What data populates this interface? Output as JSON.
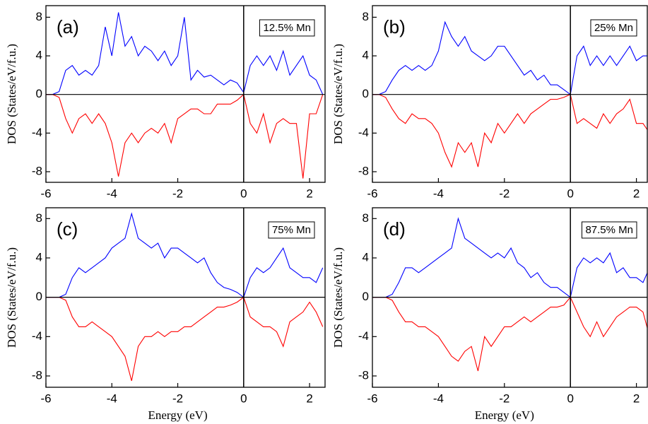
{
  "chart_data": [
    {
      "type": "line",
      "panel_label": "(a)",
      "annotation": "12.5% Mn",
      "ylabel": "DOS (States/eV/f.u.)",
      "xlim": [
        -6,
        2.47
      ],
      "ylim": [
        -9.1,
        9.2
      ],
      "xticks": [
        -6,
        -4,
        -2,
        0,
        2
      ],
      "yticks": [
        -8,
        -4,
        0,
        4,
        8
      ],
      "x": [
        -6,
        -5.8,
        -5.6,
        -5.4,
        -5.2,
        -5,
        -4.8,
        -4.6,
        -4.4,
        -4.2,
        -4,
        -3.8,
        -3.6,
        -3.4,
        -3.2,
        -3,
        -2.8,
        -2.6,
        -2.4,
        -2.2,
        -2,
        -1.8,
        -1.6,
        -1.4,
        -1.2,
        -1,
        -0.8,
        -0.6,
        -0.4,
        -0.2,
        0,
        0.2,
        0.4,
        0.6,
        0.8,
        1,
        1.2,
        1.4,
        1.6,
        1.8,
        2,
        2.2,
        2.4
      ],
      "series": [
        {
          "color": "#0000ff",
          "values": [
            0,
            0,
            0.3,
            2.5,
            3,
            2,
            2.5,
            2,
            3,
            7,
            4,
            8.5,
            5,
            6,
            4,
            5,
            4.5,
            3.5,
            4.5,
            3,
            4,
            8,
            1.5,
            2.5,
            1.8,
            2,
            1.5,
            1,
            1.5,
            1.2,
            0.2,
            3,
            4,
            3,
            4,
            2.5,
            4.5,
            2,
            3,
            4,
            2,
            1.5,
            0
          ]
        },
        {
          "color": "#ff0000",
          "values": [
            0,
            0,
            -0.3,
            -2.5,
            -4,
            -2.5,
            -2,
            -3,
            -2,
            -3,
            -5,
            -8.5,
            -5,
            -4,
            -5,
            -4,
            -3.5,
            -4,
            -3,
            -5,
            -2.5,
            -2,
            -1.5,
            -1.5,
            -2,
            -2,
            -1,
            -1,
            -1,
            -0.6,
            0,
            -3,
            -4,
            -2,
            -5,
            -3,
            -2.5,
            -3,
            -3,
            -8.7,
            -2,
            -2,
            0
          ]
        }
      ]
    },
    {
      "type": "line",
      "panel_label": "(b)",
      "annotation": "25% Mn",
      "ylabel": "DOS (States/eV/f.u.)",
      "xlim": [
        -6,
        2.33
      ],
      "ylim": [
        -9.1,
        9.2
      ],
      "xticks": [
        -6,
        -4,
        -2,
        0,
        2
      ],
      "yticks": [
        -8,
        -4,
        0,
        4,
        8
      ],
      "x": [
        -6,
        -5.8,
        -5.6,
        -5.4,
        -5.2,
        -5,
        -4.8,
        -4.6,
        -4.4,
        -4.2,
        -4,
        -3.8,
        -3.6,
        -3.4,
        -3.2,
        -3,
        -2.8,
        -2.6,
        -2.4,
        -2.2,
        -2,
        -1.8,
        -1.6,
        -1.4,
        -1.2,
        -1,
        -0.8,
        -0.6,
        -0.4,
        -0.2,
        0,
        0.2,
        0.4,
        0.6,
        0.8,
        1,
        1.2,
        1.4,
        1.6,
        1.8,
        2,
        2.2,
        2.4
      ],
      "series": [
        {
          "color": "#0000ff",
          "values": [
            0,
            0,
            0.3,
            1.5,
            2.5,
            3,
            2.5,
            3,
            2.5,
            3,
            4.5,
            7.5,
            6,
            5,
            6,
            4.5,
            4,
            3.5,
            4,
            5,
            5,
            4,
            3,
            2,
            2.5,
            1.5,
            2,
            1,
            1,
            0.5,
            0,
            4,
            5,
            3,
            4,
            3,
            4,
            3,
            4,
            5,
            3.5,
            4,
            4
          ]
        },
        {
          "color": "#ff0000",
          "values": [
            0,
            0,
            -0.3,
            -1.5,
            -2.5,
            -3,
            -2,
            -2.5,
            -2.5,
            -3,
            -4,
            -6,
            -7.5,
            -5,
            -6,
            -5,
            -7.5,
            -4,
            -5,
            -3,
            -4,
            -3,
            -2,
            -3,
            -2,
            -1.5,
            -1,
            -0.5,
            -0.5,
            -0.3,
            0,
            -3,
            -2.5,
            -3,
            -3.5,
            -2,
            -3,
            -2,
            -1.5,
            -0.5,
            -3,
            -3,
            -4
          ]
        }
      ]
    },
    {
      "type": "line",
      "panel_label": "(c)",
      "annotation": "75% Mn",
      "ylabel": "DOS (States/eV/f.u.)",
      "xlabel": "Energy (eV)",
      "xlim": [
        -6,
        2.47
      ],
      "ylim": [
        -9.15,
        9.1
      ],
      "xticks": [
        -6,
        -4,
        -2,
        0,
        2
      ],
      "yticks": [
        -8,
        -4,
        0,
        4,
        8
      ],
      "x": [
        -6,
        -5.8,
        -5.6,
        -5.4,
        -5.2,
        -5,
        -4.8,
        -4.6,
        -4.4,
        -4.2,
        -4,
        -3.8,
        -3.6,
        -3.4,
        -3.2,
        -3,
        -2.8,
        -2.6,
        -2.4,
        -2.2,
        -2,
        -1.8,
        -1.6,
        -1.4,
        -1.2,
        -1,
        -0.8,
        -0.6,
        -0.4,
        -0.2,
        0,
        0.2,
        0.4,
        0.6,
        0.8,
        1,
        1.2,
        1.4,
        1.6,
        1.8,
        2,
        2.2,
        2.4
      ],
      "series": [
        {
          "color": "#0000ff",
          "values": [
            0,
            0,
            0,
            0.3,
            2,
            3,
            2.5,
            3,
            3.5,
            4,
            5,
            5.5,
            6,
            8.5,
            6,
            5.5,
            5,
            5.5,
            4,
            5,
            5,
            4.5,
            4,
            3.5,
            4,
            2.5,
            1.5,
            1,
            0.8,
            0.5,
            0,
            2,
            3,
            2.5,
            3,
            4,
            5,
            3,
            2.5,
            2,
            2,
            1.5,
            3
          ]
        },
        {
          "color": "#ff0000",
          "values": [
            0,
            0,
            0,
            -0.3,
            -2,
            -3,
            -3,
            -2.5,
            -3,
            -3.5,
            -4,
            -5,
            -6,
            -8.5,
            -5,
            -4,
            -4,
            -3.5,
            -4,
            -3.5,
            -3.5,
            -3,
            -3,
            -2.5,
            -2,
            -1.5,
            -1,
            -1,
            -0.8,
            -0.5,
            0,
            -2,
            -2.5,
            -3,
            -3,
            -3.5,
            -5,
            -2.5,
            -2,
            -1.5,
            -0.5,
            -1.5,
            -3
          ]
        }
      ]
    },
    {
      "type": "line",
      "panel_label": "(d)",
      "annotation": "87.5% Mn",
      "ylabel": "DOS (States/eV/f.u.)",
      "xlabel": "Energy (eV)",
      "xlim": [
        -6,
        2.33
      ],
      "ylim": [
        -9.15,
        9.1
      ],
      "xticks": [
        -6,
        -4,
        -2,
        0,
        2
      ],
      "yticks": [
        -8,
        -4,
        0,
        4,
        8
      ],
      "x": [
        -6,
        -5.8,
        -5.6,
        -5.4,
        -5.2,
        -5,
        -4.8,
        -4.6,
        -4.4,
        -4.2,
        -4,
        -3.8,
        -3.6,
        -3.4,
        -3.2,
        -3,
        -2.8,
        -2.6,
        -2.4,
        -2.2,
        -2,
        -1.8,
        -1.6,
        -1.4,
        -1.2,
        -1,
        -0.8,
        -0.6,
        -0.4,
        -0.2,
        0,
        0.2,
        0.4,
        0.6,
        0.8,
        1,
        1.2,
        1.4,
        1.6,
        1.8,
        2,
        2.2,
        2.4
      ],
      "series": [
        {
          "color": "#0000ff",
          "values": [
            0,
            0,
            0,
            0.3,
            1.5,
            3,
            3,
            2.5,
            3,
            3.5,
            4,
            4.5,
            5,
            8,
            6,
            5.5,
            5,
            4.5,
            4,
            4.5,
            4,
            5,
            3.5,
            3,
            2,
            2.5,
            1.5,
            1,
            1,
            0.5,
            0,
            3,
            4,
            3.5,
            4,
            3.5,
            4.5,
            2.5,
            3,
            2,
            2,
            1.5,
            3
          ]
        },
        {
          "color": "#ff0000",
          "values": [
            0,
            0,
            0,
            -0.3,
            -1.5,
            -2.5,
            -2.5,
            -3,
            -3,
            -3.5,
            -4,
            -5,
            -6,
            -6.5,
            -5.5,
            -5,
            -7.5,
            -4,
            -5,
            -4,
            -3,
            -3,
            -2.5,
            -2,
            -2.5,
            -2,
            -1.5,
            -1,
            -1,
            -0.8,
            0,
            -1.5,
            -3,
            -4,
            -2.5,
            -4,
            -3,
            -2,
            -1.5,
            -1,
            -1,
            -1.5,
            -4
          ]
        }
      ]
    }
  ]
}
